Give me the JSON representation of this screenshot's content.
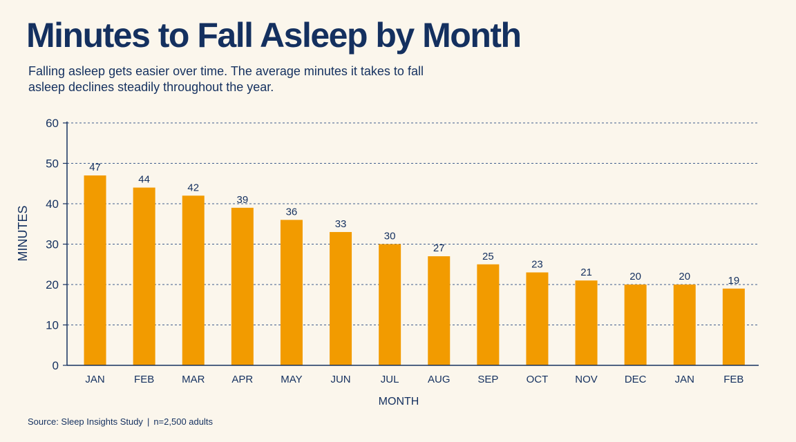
{
  "header": {
    "title": "Minutes to Fall Asleep by Month",
    "subtitle": "Falling asleep gets easier over time. The average minutes it takes to fall asleep declines steadily throughout the year."
  },
  "footer": {
    "source": "Source: Sleep Insights Study",
    "separator": "|",
    "sample": "n=2,500 adults"
  },
  "colors": {
    "bar": "#f29b00",
    "text": "#14305f",
    "grid": "#3f5c8c",
    "background": "#fbf6ec"
  },
  "chart_data": {
    "type": "bar",
    "title": "Minutes to Fall Asleep by Month",
    "xlabel": "MONTH",
    "ylabel": "MINUTES",
    "categories": [
      "JAN",
      "FEB",
      "MAR",
      "APR",
      "MAY",
      "JUN",
      "JUL",
      "AUG",
      "SEP",
      "OCT",
      "NOV",
      "DEC",
      "JAN",
      "FEB"
    ],
    "values": [
      47,
      44,
      42,
      39,
      36,
      33,
      30,
      27,
      25,
      23,
      21,
      20,
      20,
      19
    ],
    "data_labels": [
      "47",
      "44",
      "42",
      "39",
      "36",
      "33",
      "30",
      "27",
      "25",
      "23",
      "21",
      "20",
      "20",
      "19"
    ],
    "ylim": [
      0,
      60
    ],
    "yticks": [
      0,
      10,
      20,
      30,
      40,
      50,
      60
    ],
    "ytick_labels": [
      "0",
      "10",
      "20",
      "30",
      "40",
      "50",
      "60"
    ],
    "grid": "horizontal dashed",
    "legend": "none"
  }
}
